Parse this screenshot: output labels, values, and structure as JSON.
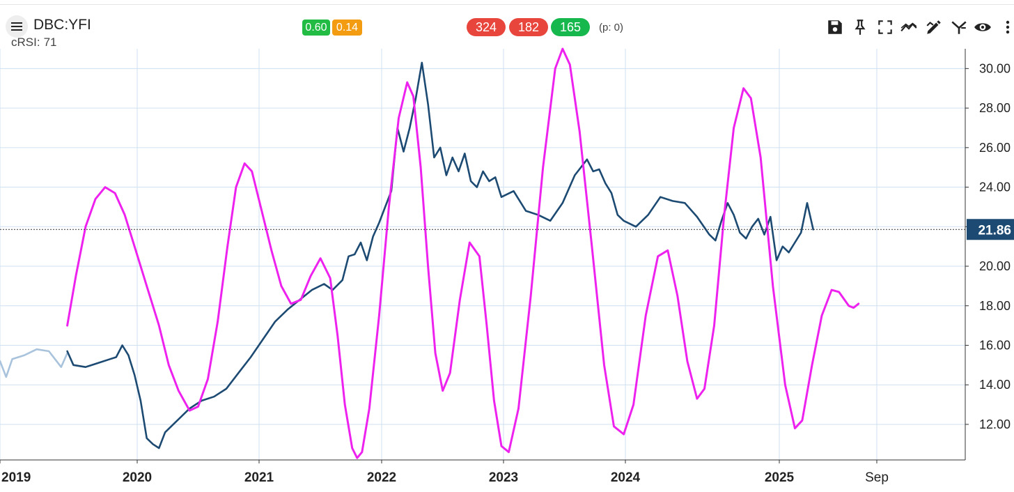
{
  "header": {
    "symbol": "DBC:YFI",
    "crsi_label": "cRSI:",
    "crsi_value": "71",
    "badges": [
      {
        "label": "0.60",
        "color": "#22bb44"
      },
      {
        "label": "0.14",
        "color": "#f39c12"
      }
    ],
    "counts": [
      {
        "label": "324",
        "color": "#e8453c"
      },
      {
        "label": "182",
        "color": "#e8453c"
      },
      {
        "label": "165",
        "color": "#16b84e"
      }
    ],
    "p_value": "(p: 0)",
    "toolbar": [
      "save-icon",
      "pin-icon",
      "fullscreen-icon",
      "trend-icon",
      "draw-icon",
      "fork-icon",
      "eye-icon",
      "more-icon"
    ]
  },
  "chart_data": {
    "type": "line",
    "x_ticks": [
      "2019",
      "2020",
      "2021",
      "2022",
      "2023",
      "2024",
      "2025",
      "Sep"
    ],
    "y_ticks": [
      "12.00",
      "14.00",
      "16.00",
      "18.00",
      "20.00",
      "22.00",
      "24.00",
      "26.00",
      "28.00",
      "30.00"
    ],
    "ylim": [
      10.2,
      31.0
    ],
    "current_value": "21.86",
    "grid": true,
    "series": [
      {
        "role": "price-history",
        "color": "#a9c3dd",
        "points": [
          [
            2018.9,
            15.5
          ],
          [
            2018.95,
            14.6
          ],
          [
            2019.0,
            15.2
          ],
          [
            2019.05,
            14.4
          ],
          [
            2019.1,
            15.3
          ],
          [
            2019.2,
            15.5
          ],
          [
            2019.3,
            15.8
          ],
          [
            2019.4,
            15.7
          ],
          [
            2019.45,
            15.3
          ],
          [
            2019.5,
            14.9
          ],
          [
            2019.55,
            15.6
          ]
        ]
      },
      {
        "role": "price",
        "color": "#1c4a72",
        "points": [
          [
            2019.55,
            15.7
          ],
          [
            2019.6,
            15.0
          ],
          [
            2019.7,
            14.9
          ],
          [
            2019.8,
            15.1
          ],
          [
            2019.9,
            15.3
          ],
          [
            2019.95,
            15.4
          ],
          [
            2020.0,
            16.0
          ],
          [
            2020.05,
            15.5
          ],
          [
            2020.1,
            14.5
          ],
          [
            2020.15,
            13.2
          ],
          [
            2020.2,
            11.3
          ],
          [
            2020.25,
            11.0
          ],
          [
            2020.3,
            10.8
          ],
          [
            2020.35,
            11.6
          ],
          [
            2020.45,
            12.2
          ],
          [
            2020.55,
            12.8
          ],
          [
            2020.65,
            13.2
          ],
          [
            2020.75,
            13.4
          ],
          [
            2020.85,
            13.8
          ],
          [
            2020.95,
            14.6
          ],
          [
            2021.05,
            15.4
          ],
          [
            2021.15,
            16.3
          ],
          [
            2021.25,
            17.2
          ],
          [
            2021.35,
            17.8
          ],
          [
            2021.45,
            18.3
          ],
          [
            2021.55,
            18.8
          ],
          [
            2021.65,
            19.1
          ],
          [
            2021.72,
            18.8
          ],
          [
            2021.8,
            19.3
          ],
          [
            2021.85,
            20.5
          ],
          [
            2021.9,
            20.6
          ],
          [
            2021.95,
            21.2
          ],
          [
            2022.0,
            20.3
          ],
          [
            2022.05,
            21.5
          ],
          [
            2022.1,
            22.2
          ],
          [
            2022.15,
            23.0
          ],
          [
            2022.2,
            23.8
          ],
          [
            2022.25,
            27.0
          ],
          [
            2022.3,
            25.8
          ],
          [
            2022.35,
            27.0
          ],
          [
            2022.4,
            28.5
          ],
          [
            2022.45,
            30.3
          ],
          [
            2022.5,
            28.2
          ],
          [
            2022.55,
            25.5
          ],
          [
            2022.6,
            26.0
          ],
          [
            2022.65,
            24.6
          ],
          [
            2022.7,
            25.5
          ],
          [
            2022.75,
            24.8
          ],
          [
            2022.8,
            25.7
          ],
          [
            2022.85,
            24.3
          ],
          [
            2022.9,
            24.0
          ],
          [
            2022.95,
            24.8
          ],
          [
            2023.0,
            24.3
          ],
          [
            2023.05,
            24.5
          ],
          [
            2023.1,
            23.5
          ],
          [
            2023.2,
            23.8
          ],
          [
            2023.3,
            22.8
          ],
          [
            2023.4,
            22.6
          ],
          [
            2023.5,
            22.3
          ],
          [
            2023.6,
            23.2
          ],
          [
            2023.7,
            24.6
          ],
          [
            2023.8,
            25.4
          ],
          [
            2023.85,
            24.8
          ],
          [
            2023.9,
            24.9
          ],
          [
            2023.95,
            24.2
          ],
          [
            2024.0,
            23.7
          ],
          [
            2024.05,
            22.6
          ],
          [
            2024.1,
            22.3
          ],
          [
            2024.2,
            22.0
          ],
          [
            2024.3,
            22.6
          ],
          [
            2024.4,
            23.5
          ],
          [
            2024.5,
            23.3
          ],
          [
            2024.6,
            23.2
          ],
          [
            2024.7,
            22.5
          ],
          [
            2024.8,
            21.6
          ],
          [
            2024.85,
            21.3
          ],
          [
            2024.9,
            22.3
          ],
          [
            2024.95,
            23.2
          ],
          [
            2025.0,
            22.6
          ],
          [
            2025.05,
            21.7
          ],
          [
            2025.1,
            21.4
          ],
          [
            2025.15,
            22.0
          ],
          [
            2025.2,
            22.4
          ],
          [
            2025.25,
            21.6
          ],
          [
            2025.3,
            22.5
          ],
          [
            2025.35,
            20.3
          ],
          [
            2025.4,
            21.0
          ],
          [
            2025.45,
            20.7
          ],
          [
            2025.5,
            21.2
          ],
          [
            2025.55,
            21.7
          ],
          [
            2025.6,
            23.2
          ],
          [
            2025.65,
            21.86
          ]
        ]
      },
      {
        "role": "cycle",
        "color": "#ee22ee",
        "points": [
          [
            2019.55,
            17.0
          ],
          [
            2019.62,
            19.5
          ],
          [
            2019.7,
            22.0
          ],
          [
            2019.78,
            23.4
          ],
          [
            2019.86,
            24.0
          ],
          [
            2019.94,
            23.7
          ],
          [
            2020.02,
            22.6
          ],
          [
            2020.1,
            21.0
          ],
          [
            2020.2,
            19.0
          ],
          [
            2020.3,
            17.0
          ],
          [
            2020.38,
            15.0
          ],
          [
            2020.46,
            13.7
          ],
          [
            2020.55,
            12.7
          ],
          [
            2020.62,
            12.9
          ],
          [
            2020.7,
            14.3
          ],
          [
            2020.78,
            17.2
          ],
          [
            2020.86,
            21.0
          ],
          [
            2020.93,
            24.0
          ],
          [
            2021.0,
            25.2
          ],
          [
            2021.06,
            24.8
          ],
          [
            2021.14,
            22.8
          ],
          [
            2021.22,
            20.8
          ],
          [
            2021.3,
            19.0
          ],
          [
            2021.38,
            18.1
          ],
          [
            2021.46,
            18.3
          ],
          [
            2021.54,
            19.5
          ],
          [
            2021.62,
            20.4
          ],
          [
            2021.7,
            19.4
          ],
          [
            2021.76,
            16.5
          ],
          [
            2021.82,
            13.0
          ],
          [
            2021.88,
            10.8
          ],
          [
            2021.92,
            10.3
          ],
          [
            2021.96,
            10.6
          ],
          [
            2022.02,
            12.8
          ],
          [
            2022.1,
            17.5
          ],
          [
            2022.18,
            23.0
          ],
          [
            2022.26,
            27.5
          ],
          [
            2022.33,
            29.3
          ],
          [
            2022.38,
            28.6
          ],
          [
            2022.44,
            25.0
          ],
          [
            2022.5,
            20.0
          ],
          [
            2022.56,
            15.6
          ],
          [
            2022.62,
            13.7
          ],
          [
            2022.68,
            14.6
          ],
          [
            2022.76,
            18.3
          ],
          [
            2022.84,
            21.2
          ],
          [
            2022.92,
            20.5
          ],
          [
            2022.98,
            17.0
          ],
          [
            2023.04,
            13.2
          ],
          [
            2023.1,
            10.9
          ],
          [
            2023.16,
            10.6
          ],
          [
            2023.24,
            12.8
          ],
          [
            2023.34,
            18.5
          ],
          [
            2023.44,
            25.0
          ],
          [
            2023.54,
            30.0
          ],
          [
            2023.6,
            31.0
          ],
          [
            2023.66,
            30.2
          ],
          [
            2023.74,
            26.8
          ],
          [
            2023.84,
            21.0
          ],
          [
            2023.94,
            15.0
          ],
          [
            2024.02,
            11.9
          ],
          [
            2024.1,
            11.5
          ],
          [
            2024.18,
            13.0
          ],
          [
            2024.28,
            17.5
          ],
          [
            2024.38,
            20.5
          ],
          [
            2024.46,
            20.8
          ],
          [
            2024.54,
            18.5
          ],
          [
            2024.62,
            15.2
          ],
          [
            2024.7,
            13.3
          ],
          [
            2024.76,
            13.8
          ],
          [
            2024.84,
            17.0
          ],
          [
            2024.92,
            22.5
          ],
          [
            2025.0,
            27.0
          ],
          [
            2025.08,
            29.0
          ],
          [
            2025.14,
            28.5
          ],
          [
            2025.22,
            25.5
          ],
          [
            2025.32,
            19.0
          ],
          [
            2025.42,
            14.0
          ],
          [
            2025.5,
            11.8
          ],
          [
            2025.56,
            12.2
          ],
          [
            2025.64,
            15.0
          ],
          [
            2025.72,
            17.5
          ],
          [
            2025.8,
            18.8
          ],
          [
            2025.86,
            18.7
          ],
          [
            2025.94,
            18.0
          ],
          [
            2025.98,
            17.9
          ],
          [
            2026.02,
            18.1
          ]
        ]
      }
    ]
  }
}
